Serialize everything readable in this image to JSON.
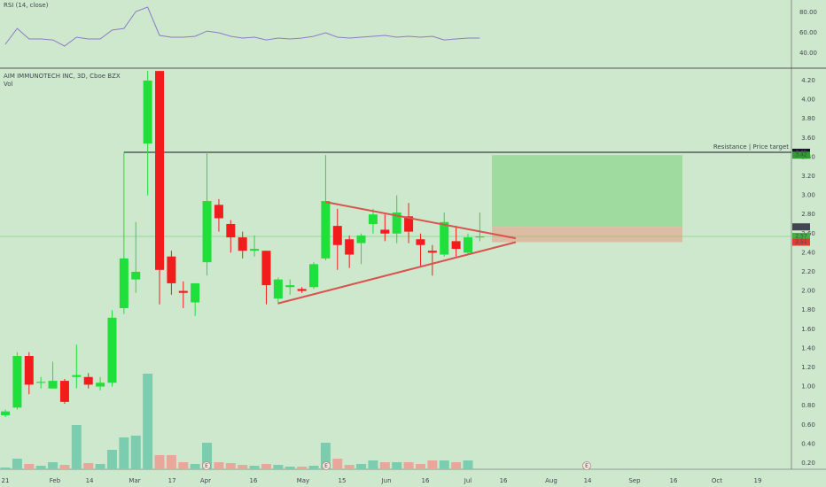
{
  "chart_data": {
    "type": "candlestick",
    "title": "AIM IMMUNOTECH INC, 3D, Cboe BZX",
    "volume_label": "Vol",
    "rsi_label": "RSI (14, close)",
    "x": [
      0,
      1,
      2,
      3,
      4,
      5,
      6,
      7,
      8,
      9,
      10,
      11,
      12,
      13,
      14,
      15,
      16,
      17,
      18,
      19,
      20,
      21,
      22,
      23,
      24,
      25,
      26,
      27,
      28,
      29,
      30,
      31,
      32,
      33,
      34,
      35,
      36,
      37,
      38,
      39,
      40
    ],
    "open": [
      0.7,
      0.78,
      1.32,
      1.04,
      0.98,
      1.06,
      1.1,
      1.1,
      1.0,
      1.04,
      1.82,
      2.12,
      3.54,
      4.3,
      2.36,
      2.0,
      1.88,
      2.3,
      2.9,
      2.7,
      2.56,
      2.42,
      2.42,
      1.92,
      2.04,
      2.02,
      2.04,
      2.34,
      2.68,
      2.54,
      2.5,
      2.7,
      2.64,
      2.6,
      2.78,
      2.54,
      2.42,
      2.38,
      2.52,
      2.4,
      2.56
    ],
    "high": [
      0.76,
      1.36,
      1.36,
      1.1,
      1.26,
      1.08,
      1.44,
      1.14,
      1.1,
      1.8,
      3.45,
      2.72,
      4.3,
      4.3,
      2.42,
      2.1,
      2.08,
      3.45,
      2.96,
      2.74,
      2.62,
      2.58,
      2.42,
      2.14,
      2.12,
      2.04,
      2.3,
      3.42,
      2.86,
      2.58,
      2.6,
      2.86,
      2.8,
      3.0,
      2.92,
      2.6,
      2.48,
      2.82,
      2.68,
      2.6,
      2.82
    ],
    "low": [
      0.68,
      0.76,
      0.92,
      0.98,
      0.98,
      0.82,
      0.98,
      0.98,
      0.96,
      1.0,
      1.76,
      1.98,
      3.0,
      1.86,
      1.96,
      1.82,
      1.74,
      2.16,
      2.62,
      2.4,
      2.34,
      2.36,
      1.86,
      1.86,
      1.96,
      1.98,
      2.02,
      2.32,
      2.22,
      2.24,
      2.28,
      2.6,
      2.52,
      2.5,
      2.5,
      2.26,
      2.16,
      2.36,
      2.36,
      2.38,
      2.52
    ],
    "close": [
      0.74,
      1.32,
      1.02,
      1.05,
      1.06,
      0.84,
      1.12,
      1.02,
      1.04,
      1.72,
      2.34,
      2.2,
      4.2,
      2.22,
      2.08,
      1.98,
      2.08,
      2.94,
      2.76,
      2.56,
      2.42,
      2.44,
      2.06,
      2.12,
      2.06,
      2.0,
      2.28,
      2.94,
      2.48,
      2.38,
      2.58,
      2.8,
      2.6,
      2.82,
      2.62,
      2.48,
      2.4,
      2.72,
      2.44,
      2.56,
      2.57
    ],
    "volume": [
      2,
      12,
      6,
      4,
      8,
      5,
      50,
      7,
      6,
      22,
      36,
      38,
      108,
      16,
      16,
      8,
      6,
      30,
      8,
      7,
      5,
      4,
      6,
      5,
      3,
      3,
      4,
      30,
      12,
      5,
      6,
      10,
      8,
      8,
      8,
      6,
      10,
      10,
      8,
      10,
      0
    ],
    "rsi": [
      48.7,
      64.3,
      53.9,
      53.9,
      53,
      47,
      55.7,
      53.9,
      53.9,
      62.6,
      64.3,
      80.9,
      85.2,
      57.4,
      55.7,
      55.7,
      56.5,
      61.7,
      60,
      56.5,
      54.8,
      55.7,
      53,
      54.8,
      53.9,
      54.8,
      56.5,
      60,
      55.7,
      54.8,
      55.7,
      56.5,
      57.4,
      55.7,
      56.5,
      55.7,
      56.5,
      53,
      53.9,
      54.8,
      54.8
    ],
    "up_color": "#1fe03a",
    "down_color": "#f21c1c",
    "volume_up_color": "#7ccdb0",
    "volume_down_color": "#e9a79c",
    "rsi_color": "#8e7cc3",
    "xlim": [
      -0.45,
      66.27
    ],
    "ylim": [
      0.135,
      4.32
    ],
    "vlim": [
      0,
      452
    ],
    "rsi_ylim": [
      26.1,
      92.2
    ],
    "rsi_yticks": [
      {
        "value": 40,
        "label": "40.00"
      },
      {
        "value": 60,
        "label": "60.00"
      },
      {
        "value": 80,
        "label": "80.00"
      }
    ],
    "yticks": [
      {
        "value": 0.2,
        "label": "0.20"
      },
      {
        "value": 0.4,
        "label": "0.40"
      },
      {
        "value": 0.6,
        "label": "0.60"
      },
      {
        "value": 0.8,
        "label": "0.80"
      },
      {
        "value": 1.0,
        "label": "1.00"
      },
      {
        "value": 1.2,
        "label": "1.20"
      },
      {
        "value": 1.4,
        "label": "1.40"
      },
      {
        "value": 1.6,
        "label": "1.60"
      },
      {
        "value": 1.8,
        "label": "1.80"
      },
      {
        "value": 2.0,
        "label": "2.00"
      },
      {
        "value": 2.2,
        "label": "2.20"
      },
      {
        "value": 2.4,
        "label": "2.40"
      },
      {
        "value": 2.6,
        "label": "2.60"
      },
      {
        "value": 2.8,
        "label": "2.80"
      },
      {
        "value": 3.0,
        "label": "3.00"
      },
      {
        "value": 3.2,
        "label": "3.20"
      },
      {
        "value": 3.4,
        "label": "3.40"
      },
      {
        "value": 3.6,
        "label": "3.60"
      },
      {
        "value": 3.8,
        "label": "3.80"
      },
      {
        "value": 4.0,
        "label": "4.00"
      },
      {
        "value": 4.2,
        "label": "4.20"
      }
    ],
    "xticks": [
      {
        "value": 0,
        "label": "21"
      },
      {
        "value": 4.18,
        "label": "Feb"
      },
      {
        "value": 7.1,
        "label": "14"
      },
      {
        "value": 10.91,
        "label": "Mar"
      },
      {
        "value": 14.05,
        "label": "17"
      },
      {
        "value": 16.88,
        "label": "Apr"
      },
      {
        "value": 20.92,
        "label": "16"
      },
      {
        "value": 25.1,
        "label": "May"
      },
      {
        "value": 28.39,
        "label": "15"
      },
      {
        "value": 32.13,
        "label": "Jun"
      },
      {
        "value": 35.41,
        "label": "16"
      },
      {
        "value": 39.0,
        "label": "Jul"
      },
      {
        "value": 41.99,
        "label": "16"
      },
      {
        "value": 46.02,
        "label": "Aug"
      },
      {
        "value": 49.09,
        "label": "14"
      },
      {
        "value": 53.04,
        "label": "Sep"
      },
      {
        "value": 56.33,
        "label": "16"
      },
      {
        "value": 59.99,
        "label": "Oct"
      },
      {
        "value": 63.43,
        "label": "19"
      }
    ],
    "resistance": {
      "price": 3.45,
      "x_start": 10.0,
      "label": "Resistance | Price target"
    },
    "position": {
      "x_start": 41.02,
      "x_end": 57.08,
      "target": 3.42,
      "entry": 2.67,
      "stop": 2.51,
      "target_color": "#8fd68f",
      "stop_color": "#e0b49c"
    },
    "last_price": 2.57,
    "price_labels": [
      {
        "value": 3.45,
        "color": "#131722"
      },
      {
        "value": 3.42,
        "color": "#2e9e2e"
      },
      {
        "value": 2.67,
        "color": "#434651"
      },
      {
        "value": 2.57,
        "color": "#3fb33f"
      },
      {
        "value": 2.51,
        "color": "#e53935"
      }
    ],
    "triangle": [
      {
        "x": [
          27.0,
          43.03
        ],
        "y": [
          2.93,
          2.55
        ]
      },
      {
        "x": [
          23.0,
          43.03
        ],
        "y": [
          1.87,
          2.51
        ]
      }
    ],
    "triangle_color": "#d9534f",
    "events": [
      {
        "x": 16.96,
        "label": "E"
      },
      {
        "x": 27.05,
        "label": "E"
      },
      {
        "x": 49.01,
        "label": "E"
      }
    ]
  }
}
